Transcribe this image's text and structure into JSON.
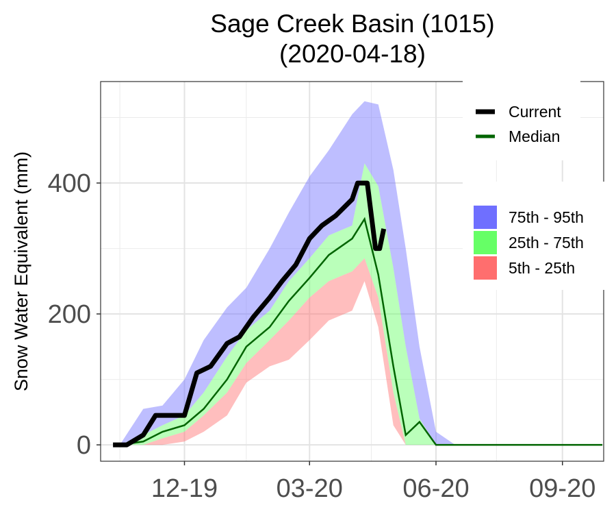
{
  "chart_data": {
    "type": "area",
    "title": "Sage Creek Basin (1015)",
    "subtitle": "(2020-04-18)",
    "xlabel": "",
    "ylabel": "Snow Water Equivalent (mm)",
    "x_ticks": [
      "12-19",
      "03-20",
      "06-20",
      "09-20"
    ],
    "y_ticks": [
      0,
      200,
      400
    ],
    "ylim": [
      -25,
      555
    ],
    "xlim": [
      "2019-10-01",
      "2020-10-01"
    ],
    "grid": true,
    "legend": {
      "position": "top-right",
      "lines": [
        {
          "label": "Current",
          "color": "#000000"
        },
        {
          "label": "Median",
          "color": "#006400"
        }
      ],
      "bands": [
        {
          "label": "75th - 95th",
          "color": "#6f6fff"
        },
        {
          "label": "25th - 75th",
          "color": "#66ff66"
        },
        {
          "label": "5th - 25th",
          "color": "#ff6e6e"
        }
      ]
    },
    "x": [
      "2019-10-15",
      "2019-11-01",
      "2019-11-15",
      "2019-12-01",
      "2019-12-15",
      "2020-01-01",
      "2020-01-15",
      "2020-02-01",
      "2020-02-15",
      "2020-03-01",
      "2020-03-15",
      "2020-04-01",
      "2020-04-10",
      "2020-04-20",
      "2020-05-01",
      "2020-05-10",
      "2020-05-20",
      "2020-06-01",
      "2020-06-15",
      "2020-07-01",
      "2020-08-01",
      "2020-09-01",
      "2020-09-30"
    ],
    "series": [
      {
        "name": "p95",
        "values": [
          0,
          55,
          60,
          100,
          160,
          210,
          240,
          300,
          355,
          410,
          450,
          505,
          525,
          520,
          420,
          300,
          150,
          20,
          0,
          0,
          0,
          0,
          0
        ]
      },
      {
        "name": "p75",
        "values": [
          0,
          15,
          30,
          45,
          80,
          135,
          175,
          205,
          250,
          285,
          320,
          335,
          430,
          395,
          270,
          150,
          40,
          0,
          0,
          0,
          0,
          0,
          0
        ]
      },
      {
        "name": "Median",
        "values": [
          0,
          5,
          20,
          30,
          55,
          100,
          150,
          180,
          220,
          255,
          290,
          315,
          345,
          260,
          120,
          15,
          35,
          0,
          0,
          0,
          0,
          0,
          0
        ]
      },
      {
        "name": "p25",
        "values": [
          0,
          0,
          10,
          20,
          45,
          80,
          125,
          160,
          190,
          225,
          250,
          265,
          285,
          225,
          80,
          0,
          0,
          0,
          0,
          0,
          0,
          0,
          0
        ]
      },
      {
        "name": "p5",
        "values": [
          0,
          0,
          0,
          5,
          20,
          45,
          95,
          120,
          130,
          160,
          190,
          205,
          250,
          180,
          30,
          0,
          0,
          0,
          0,
          0,
          0,
          0,
          0
        ]
      },
      {
        "name": "Current",
        "x": [
          "2019-10-10",
          "2019-10-20",
          "2019-11-01",
          "2019-11-10",
          "2019-11-20",
          "2019-12-01",
          "2019-12-10",
          "2019-12-20",
          "2020-01-01",
          "2020-01-10",
          "2020-01-20",
          "2020-02-01",
          "2020-02-10",
          "2020-02-20",
          "2020-03-01",
          "2020-03-10",
          "2020-03-20",
          "2020-04-01",
          "2020-04-05",
          "2020-04-12",
          "2020-04-18",
          "2020-04-21",
          "2020-04-24"
        ],
        "values": [
          0,
          0,
          15,
          45,
          45,
          45,
          110,
          120,
          155,
          165,
          195,
          225,
          250,
          275,
          315,
          335,
          350,
          375,
          400,
          400,
          300,
          300,
          330
        ]
      }
    ]
  }
}
